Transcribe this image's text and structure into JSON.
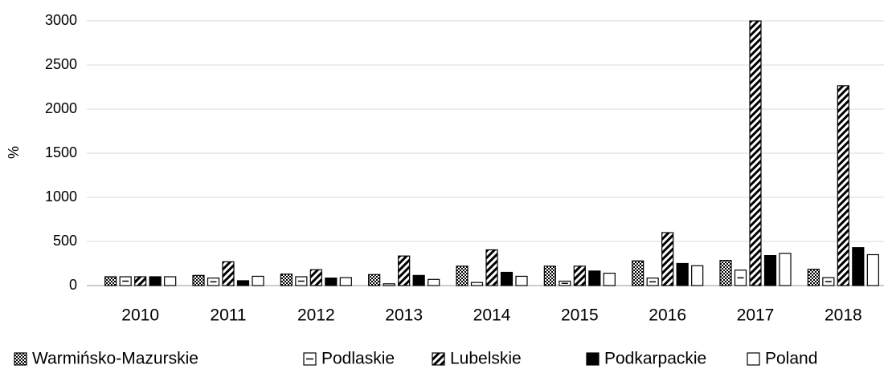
{
  "chart_data": {
    "type": "bar",
    "y_label": "%",
    "categories": [
      "2010",
      "2011",
      "2012",
      "2013",
      "2014",
      "2015",
      "2016",
      "2017",
      "2018"
    ],
    "series": [
      {
        "name": "Warmińsko-Mazurskie",
        "color": "#000000",
        "pattern": "dots",
        "values": [
          100,
          115,
          130,
          125,
          220,
          220,
          280,
          285,
          185
        ]
      },
      {
        "name": "Podlaskie",
        "color": "#000000",
        "pattern": "hline",
        "values": [
          100,
          85,
          100,
          20,
          35,
          50,
          85,
          175,
          90
        ]
      },
      {
        "name": "Lubelskie",
        "color": "#000000",
        "pattern": "diagonal",
        "values": [
          100,
          270,
          180,
          335,
          405,
          220,
          600,
          3000,
          2265
        ]
      },
      {
        "name": "Podkarpackie",
        "color": "#000000",
        "pattern": "solid",
        "values": [
          100,
          55,
          85,
          115,
          150,
          165,
          250,
          340,
          430
        ]
      },
      {
        "name": "Poland",
        "color": "#000000",
        "pattern": "none",
        "values": [
          100,
          105,
          90,
          70,
          105,
          140,
          225,
          365,
          350
        ]
      }
    ],
    "ylim": [
      0,
      3000
    ],
    "yticks": [
      0,
      500,
      1000,
      1500,
      2000,
      2500,
      3000
    ],
    "grid": true,
    "legend": "bottom"
  }
}
